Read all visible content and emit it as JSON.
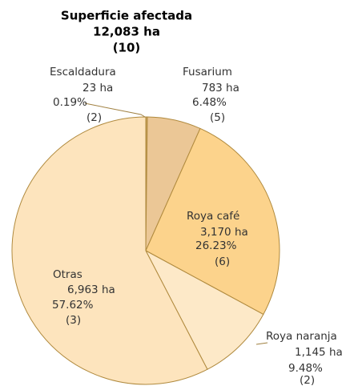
{
  "chart_data": {
    "type": "pie",
    "title": [
      "Superficie afectada",
      "12,083 ha",
      "(10)"
    ],
    "categories": [
      "Escaldadura",
      "Fusarium",
      "Roya café",
      "Roya naranja",
      "Otras"
    ],
    "values": [
      0.19,
      6.48,
      26.23,
      9.48,
      57.62
    ],
    "value_labels": [
      "0.19%",
      "6.48%",
      "26.23%",
      "9.48%",
      "57.62%"
    ],
    "areas": [
      23,
      783,
      3170,
      1145,
      6963
    ],
    "area_labels": [
      "23 ha",
      "783  ha",
      "3,170 ha",
      "1,145 ha",
      "6,963 ha"
    ],
    "counts": [
      2,
      5,
      6,
      2,
      3
    ],
    "count_labels": [
      "(2)",
      "(5)",
      "(6)",
      "(2)",
      "(3)"
    ],
    "colors": [
      "#c9a25a",
      "#ebc796",
      "#fcd38c",
      "#fde9c8",
      "#fde4bd"
    ]
  }
}
